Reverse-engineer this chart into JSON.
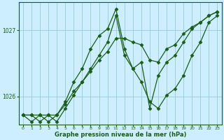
{
  "xlabel": "Graphe pression niveau de la mer (hPa)",
  "bg_color": "#cceeff",
  "grid_color": "#99cccc",
  "line_color": "#1a5c1a",
  "xlim": [
    -0.5,
    23.5
  ],
  "ylim": [
    1025.58,
    1027.42
  ],
  "yticks": [
    1026,
    1027
  ],
  "xticks": [
    0,
    1,
    2,
    3,
    4,
    5,
    6,
    7,
    8,
    9,
    10,
    11,
    12,
    13,
    14,
    15,
    16,
    17,
    18,
    19,
    20,
    21,
    22,
    23
  ],
  "series": [
    [
      1025.72,
      1025.72,
      1025.62,
      1025.72,
      1025.62,
      1025.82,
      1026.02,
      1026.22,
      1026.42,
      1026.62,
      1026.82,
      1027.22,
      1026.62,
      1026.42,
      1026.22,
      1025.92,
      1025.82,
      1026.02,
      1026.12,
      1026.32,
      1026.62,
      1026.82,
      1027.12,
      1027.22
    ],
    [
      1025.72,
      1025.62,
      1025.72,
      1025.62,
      1025.72,
      1025.92,
      1026.22,
      1026.42,
      1026.72,
      1026.92,
      1027.02,
      1027.32,
      1026.72,
      1026.42,
      1026.52,
      1025.82,
      1026.32,
      1026.52,
      1026.62,
      1026.82,
      1027.02,
      1027.12,
      1027.22,
      1027.28
    ],
    [
      1025.72,
      1025.72,
      1025.72,
      1025.72,
      1025.72,
      1025.88,
      1026.08,
      1026.22,
      1026.38,
      1026.55,
      1026.68,
      1026.88,
      1026.88,
      1026.82,
      1026.78,
      1026.55,
      1026.52,
      1026.72,
      1026.78,
      1026.95,
      1027.05,
      1027.12,
      1027.22,
      1027.28
    ]
  ],
  "marker": "D",
  "markersize": 2.5,
  "linewidth": 0.9
}
